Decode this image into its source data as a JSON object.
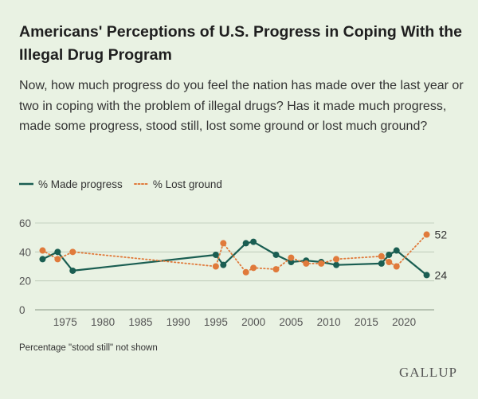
{
  "header": {
    "title": "Americans' Perceptions of U.S. Progress in Coping With the Illegal Drug Program",
    "subtitle": "Now, how much progress do you feel the nation has made over the last year or two in coping with the problem of illegal drugs? Has it made much progress, made some progress, stood still, lost some ground or lost much ground?"
  },
  "legend": {
    "made_progress": "% Made progress",
    "lost_ground": "% Lost ground"
  },
  "footnote": "Percentage \"stood still\" not shown",
  "logo": "GALLUP",
  "colors": {
    "made_progress": "#1a5e52",
    "lost_ground": "#e07a3b",
    "grid": "#b9c6b5"
  },
  "chart_data": {
    "type": "line",
    "title": "Americans' Perceptions of U.S. Progress in Coping With the Illegal Drug Program",
    "xlabel": "",
    "ylabel": "",
    "xlim": [
      1971,
      2024
    ],
    "ylim": [
      0,
      60
    ],
    "yticks": [
      0,
      20,
      40,
      60
    ],
    "xticks": [
      1975,
      1980,
      1985,
      1990,
      1995,
      2000,
      2005,
      2010,
      2015,
      2020
    ],
    "grid": true,
    "legend_position": "top-left",
    "end_labels": {
      "made_progress": "24",
      "lost_ground": "52"
    },
    "series": [
      {
        "name": "% Made progress",
        "style": "solid",
        "x": [
          1972,
          1974,
          1976,
          1995,
          1996,
          1999,
          2000,
          2003,
          2005,
          2007,
          2009,
          2011,
          2017,
          2018,
          2019,
          2023
        ],
        "values": [
          35,
          40,
          27,
          38,
          31,
          46,
          47,
          38,
          33,
          34,
          33,
          31,
          32,
          38,
          41,
          24
        ]
      },
      {
        "name": "% Lost ground",
        "style": "dotted",
        "x": [
          1972,
          1974,
          1976,
          1995,
          1996,
          1999,
          2000,
          2003,
          2005,
          2007,
          2009,
          2011,
          2017,
          2018,
          2019,
          2023
        ],
        "values": [
          41,
          35,
          40,
          30,
          46,
          26,
          29,
          28,
          36,
          32,
          32,
          35,
          37,
          33,
          30,
          52
        ]
      }
    ]
  }
}
